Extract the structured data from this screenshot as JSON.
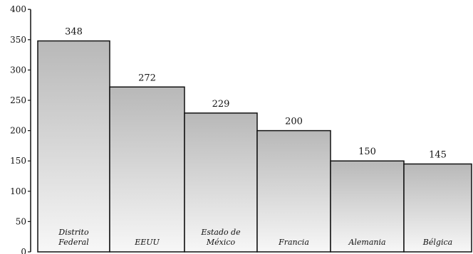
{
  "chart_data": {
    "type": "bar",
    "title": "",
    "xlabel": "",
    "ylabel": "",
    "categories": [
      "Distrito Federal",
      "EEUU",
      "Estado de México",
      "Francia",
      "Alemania",
      "Bélgica"
    ],
    "category_lines": [
      [
        "Distrito",
        "Federal"
      ],
      [
        "EEUU"
      ],
      [
        "Estado de",
        "México"
      ],
      [
        "Francia"
      ],
      [
        "Alemania"
      ],
      [
        "Bélgica"
      ]
    ],
    "values": [
      348,
      272,
      229,
      200,
      150,
      145
    ],
    "ylim": [
      0,
      400
    ],
    "yticks": [
      0,
      50,
      100,
      150,
      200,
      250,
      300,
      350,
      400
    ],
    "bar_gradient": [
      "#b8b8b8",
      "#f7f7f7"
    ],
    "bar_outline": "#111111"
  }
}
